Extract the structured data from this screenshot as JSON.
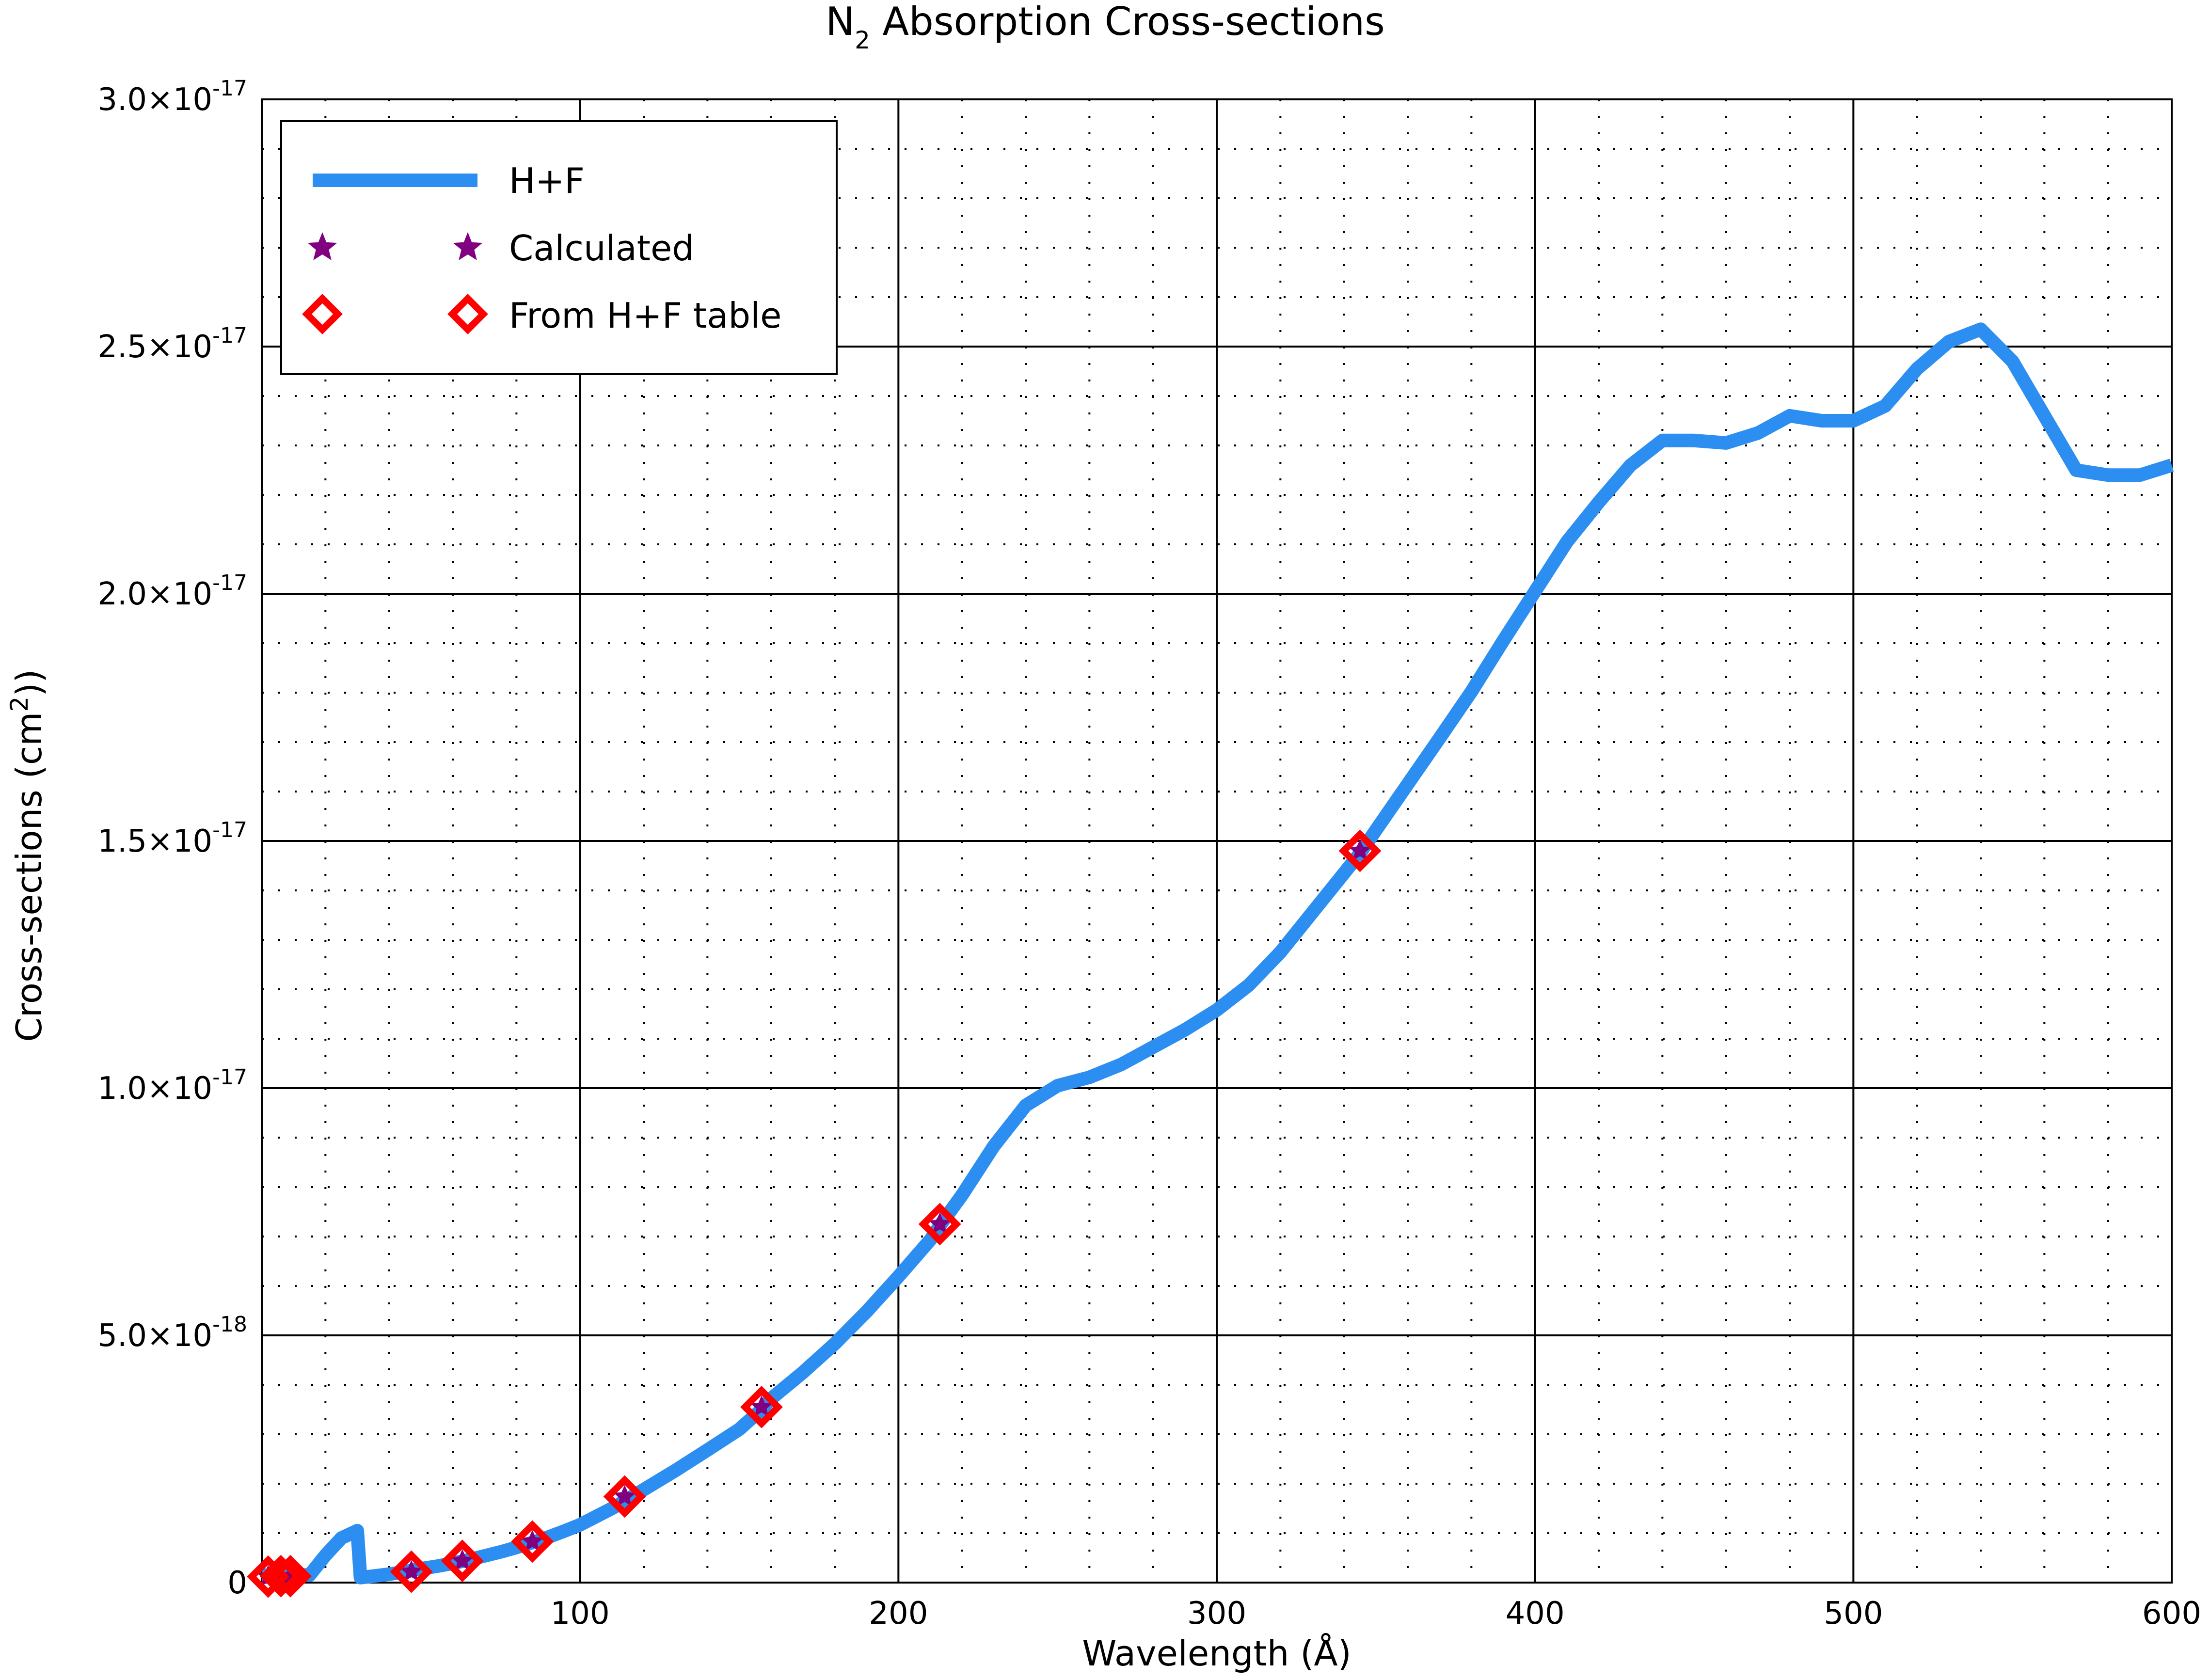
{
  "chart_data": {
    "type": "line",
    "title": "N₂ Absorption Cross-sections",
    "title_main": "N",
    "title_sub": "2",
    "title_rest": " Absorption Cross-sections",
    "xlabel": "Wavelength (Å)",
    "ylabel": "Cross-sections (cm²))",
    "ylabel_main": "Cross-sections (cm",
    "ylabel_sup": "2",
    "ylabel_end": "))",
    "xlim": [
      0,
      600
    ],
    "ylim": [
      0,
      3e-17
    ],
    "grid": "major solid, minor dotted",
    "legend_position": "top-left",
    "x_ticks": [
      {
        "value": 100,
        "label": "100"
      },
      {
        "value": 200,
        "label": "200"
      },
      {
        "value": 300,
        "label": "300"
      },
      {
        "value": 400,
        "label": "400"
      },
      {
        "value": 500,
        "label": "500"
      },
      {
        "value": 600,
        "label": "600"
      }
    ],
    "y_ticks": [
      {
        "value": 0,
        "mant": "0",
        "exp": ""
      },
      {
        "value": 5e-18,
        "mant": "5.0×10",
        "exp": "-18"
      },
      {
        "value": 1e-17,
        "mant": "1.0×10",
        "exp": "-17"
      },
      {
        "value": 1.5e-17,
        "mant": "1.5×10",
        "exp": "-17"
      },
      {
        "value": 2e-17,
        "mant": "2.0×10",
        "exp": "-17"
      },
      {
        "value": 2.5e-17,
        "mant": "2.5×10",
        "exp": "-17"
      },
      {
        "value": 3e-17,
        "mant": "3.0×10",
        "exp": "-17"
      }
    ],
    "colors": {
      "line": "#2b8ef0",
      "calculated": "#800080",
      "table": "#ff0000",
      "grid": "#000000"
    },
    "series": [
      {
        "name": "H+F",
        "style": "line",
        "x": [
          0,
          2,
          4,
          6,
          8,
          10,
          15,
          20,
          25,
          30,
          31,
          35,
          40,
          45,
          50,
          55,
          60,
          65,
          70,
          75,
          80,
          85,
          90,
          95,
          100,
          110,
          113,
          120,
          130,
          140,
          150,
          157,
          160,
          170,
          180,
          190,
          200,
          210,
          213,
          220,
          230,
          240,
          250,
          260,
          270,
          280,
          290,
          300,
          310,
          320,
          330,
          340,
          345,
          350,
          360,
          370,
          380,
          390,
          400,
          410,
          420,
          430,
          440,
          450,
          460,
          470,
          480,
          490,
          500,
          510,
          520,
          530,
          540,
          550,
          560,
          570,
          580,
          590,
          600
        ],
        "y": [
          1.5e-19,
          1.5e-19,
          1.5e-19,
          1.6e-19,
          1.7e-19,
          1.6e-19,
          1.5e-19,
          5.5e-19,
          9e-19,
          1.05e-18,
          1e-19,
          1.3e-19,
          1.7e-19,
          2.2e-19,
          2.8e-19,
          3.3e-19,
          3.9e-19,
          4.6e-19,
          5.4e-19,
          6.2e-19,
          7.1e-19,
          8.1e-19,
          9.2e-19,
          1.04e-18,
          1.17e-18,
          1.5e-18,
          1.61e-18,
          1.88e-18,
          2.27e-18,
          2.68e-18,
          3.1e-18,
          3.5e-18,
          3.72e-18,
          4.25e-18,
          4.83e-18,
          5.48e-18,
          6.19e-18,
          6.93e-18,
          7.22e-18,
          7.84e-18,
          8.83e-18,
          9.65e-18,
          1.005e-17,
          1.022e-17,
          1.048e-17,
          1.083e-17,
          1.118e-17,
          1.158e-17,
          1.208e-17,
          1.275e-17,
          1.355e-17,
          1.435e-17,
          1.475e-17,
          1.522e-17,
          1.615e-17,
          1.708e-17,
          1.802e-17,
          1.905e-17,
          2.005e-17,
          2.105e-17,
          2.185e-17,
          2.26e-17,
          2.31e-17,
          2.31e-17,
          2.305e-17,
          2.325e-17,
          2.36e-17,
          2.35e-17,
          2.35e-17,
          2.38e-17,
          2.455e-17,
          2.51e-17,
          2.535e-17,
          2.47e-17,
          2.36e-17,
          2.25e-17,
          2.24e-17,
          2.24e-17,
          2.26e-17
        ]
      },
      {
        "name": "Calculated",
        "style": "star",
        "x": [
          2,
          6,
          9,
          47,
          63,
          85,
          114,
          157,
          213,
          345
        ],
        "y": [
          1.2e-19,
          1.3e-19,
          1.3e-19,
          2.2e-19,
          4.4e-19,
          8.3e-19,
          1.74e-18,
          3.55e-18,
          7.25e-18,
          1.48e-17
        ]
      },
      {
        "name": "From H+F table",
        "style": "diamond",
        "x": [
          2,
          6,
          9,
          47,
          63,
          85,
          114,
          157,
          213,
          345
        ],
        "y": [
          1.2e-19,
          1.3e-19,
          1.3e-19,
          2.2e-19,
          4.4e-19,
          8.3e-19,
          1.74e-18,
          3.55e-18,
          7.25e-18,
          1.48e-17
        ]
      }
    ]
  }
}
